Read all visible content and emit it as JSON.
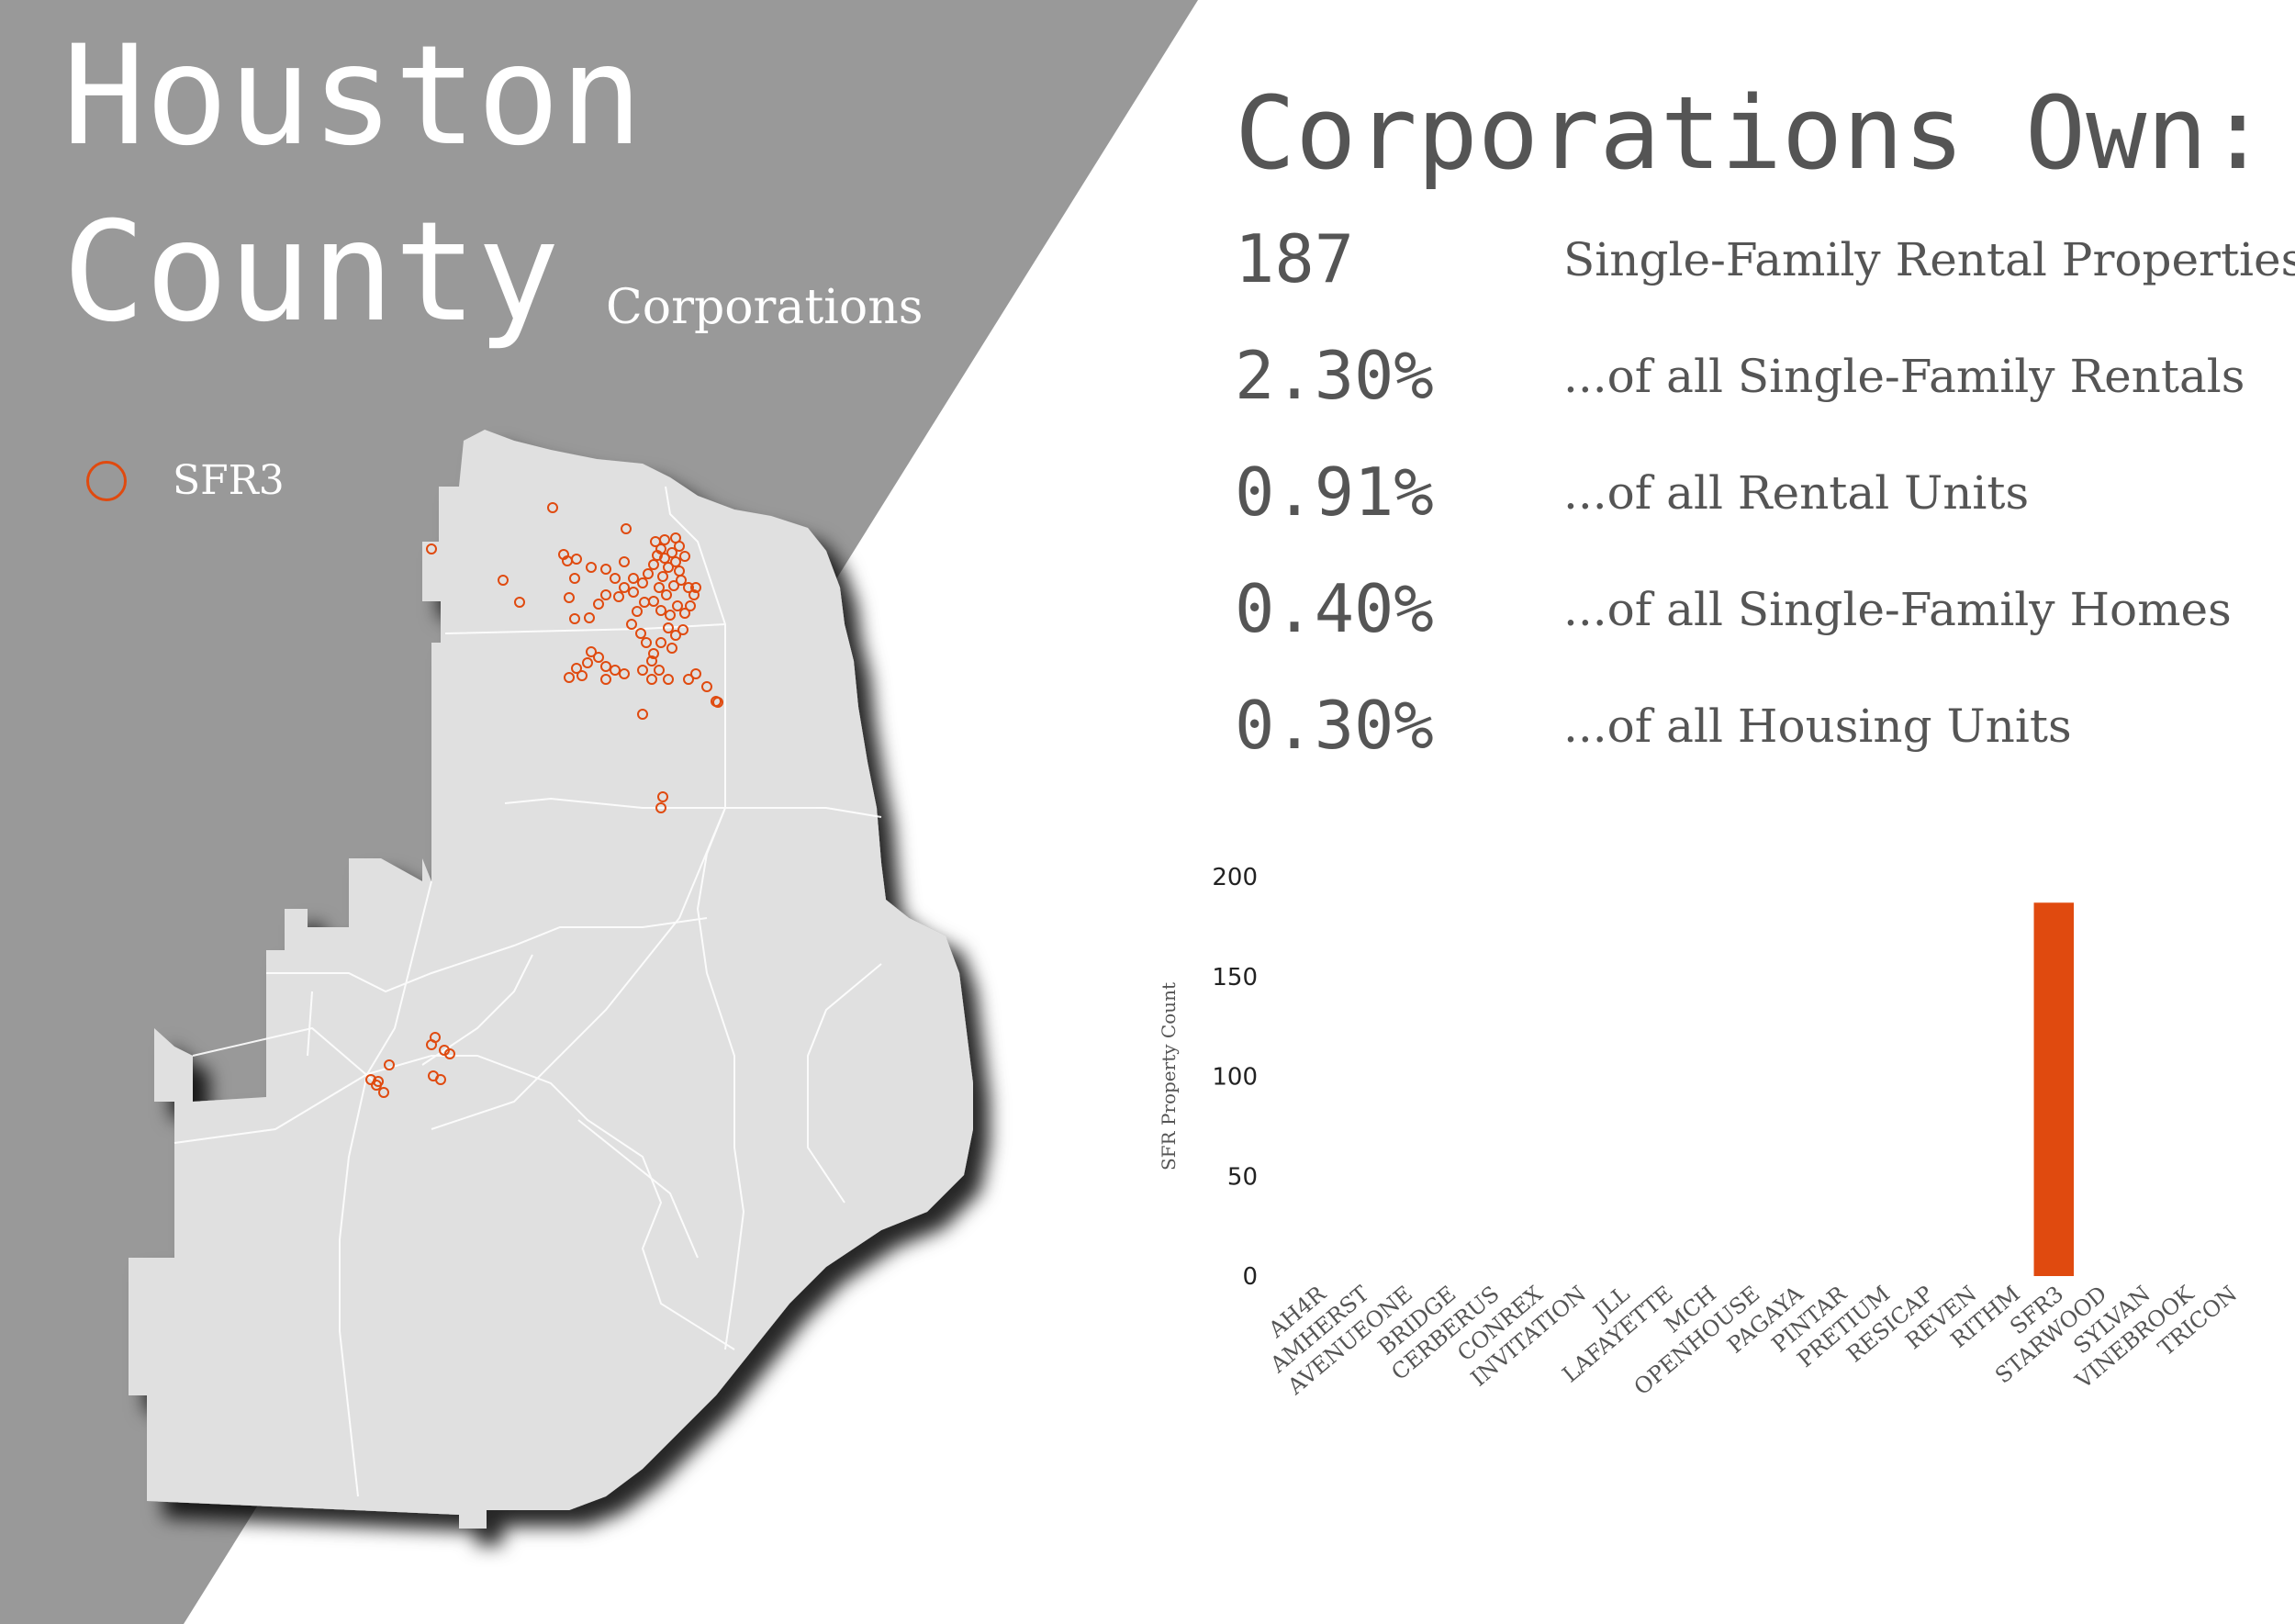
{
  "title": {
    "line1": "Houston",
    "line2": "County",
    "subtitle": "Corporations"
  },
  "legend": {
    "label": "SFR3",
    "color": "#e04a0f"
  },
  "heading": "Corporations Own:",
  "stats": [
    {
      "value": "187",
      "desc": "Single-Family Rental Properties"
    },
    {
      "value": "2.30%",
      "desc": "...of all Single-Family Rentals"
    },
    {
      "value": "0.91%",
      "desc": "...of all Rental Units"
    },
    {
      "value": "0.40%",
      "desc": "...of all Single-Family Homes"
    },
    {
      "value": "0.30%",
      "desc": "...of all Housing Units"
    }
  ],
  "colors": {
    "background_band": "#999999",
    "county_fill": "#e0e0e0",
    "roads": "#ffffff",
    "text": "#555555",
    "accent": "#e04a0f"
  },
  "chart_data": {
    "type": "bar",
    "title": "",
    "xlabel": "",
    "ylabel": "SFR Property Count",
    "ylim": [
      0,
      200
    ],
    "yticks": [
      0,
      50,
      100,
      150,
      200
    ],
    "categories": [
      "AH4R",
      "AMHERST",
      "AVENUEONE",
      "BRIDGE",
      "CERBERUS",
      "CONREX",
      "INVITATION",
      "JLL",
      "LAFAYETTE",
      "MCH",
      "OPENHOUSE",
      "PAGAYA",
      "PINTAR",
      "PRETIUM",
      "RESICAP",
      "REVEN",
      "RITHM",
      "SFR3",
      "STARWOOD",
      "SYLVAN",
      "VINEBROOK",
      "TRICON"
    ],
    "values": [
      0,
      0,
      0,
      0,
      0,
      0,
      0,
      0,
      0,
      0,
      0,
      0,
      0,
      0,
      0,
      0,
      0,
      187,
      0,
      0,
      0,
      0
    ],
    "bar_color": "#e04a0f",
    "grid": false
  }
}
